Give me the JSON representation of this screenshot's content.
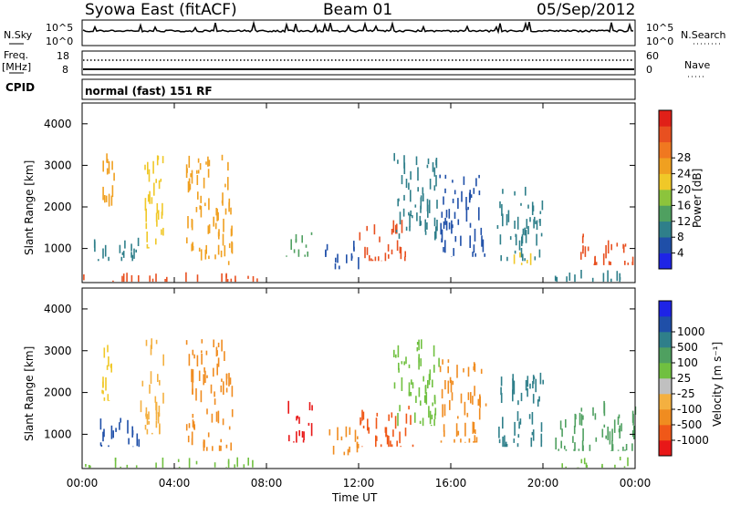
{
  "header": {
    "title": "Syowa East (fitACF)",
    "beam": "Beam 01",
    "date": "05/Sep/2012"
  },
  "status_panels": {
    "nsky_label": "N.Sky",
    "nsearch_label": "N.Search",
    "freq_label_1": "Freq.",
    "freq_label_2": "[MHz]",
    "nave_label": "Nave",
    "cpid_label": "CPID",
    "cpid_text": "normal (fast) 151 RF",
    "noise_left_ticks": [
      "10^5",
      "10^0"
    ],
    "noise_right_ticks": [
      "10^5",
      "10^0"
    ],
    "freq_left_ticks": [
      "18",
      "8"
    ],
    "nave_right_ticks": [
      "60",
      "0"
    ]
  },
  "chart_data": [
    {
      "type": "heatmap",
      "name": "power",
      "xlabel": "",
      "ylabel": "Slant Range [km]",
      "ylim": [
        180,
        4500
      ],
      "xlim": [
        0,
        24
      ],
      "y_ticks": [
        1000,
        2000,
        3000,
        4000
      ],
      "colorbar_label": "Power [dB]",
      "colorbar_ticks": [
        "4",
        "8",
        "12",
        "16",
        "20",
        "24",
        "28"
      ],
      "colorbar_colors": [
        "#1e24e6",
        "#1f4fa8",
        "#2f7f8a",
        "#4fa060",
        "#8cc43c",
        "#f0c828",
        "#f0a020",
        "#f07820",
        "#e85020",
        "#e02018"
      ],
      "regions": [
        {
          "t0": 0.0,
          "t1": 7.6,
          "r0": 200,
          "r1": 450,
          "color": "#e85020"
        },
        {
          "t0": 0.5,
          "t1": 2.5,
          "r0": 700,
          "r1": 1400,
          "color": "#2f7f8a"
        },
        {
          "t0": 0.8,
          "t1": 1.5,
          "r0": 1800,
          "r1": 3300,
          "color": "#f0a020"
        },
        {
          "t0": 2.5,
          "t1": 3.5,
          "r0": 1000,
          "r1": 3300,
          "color": "#f0c828"
        },
        {
          "t0": 4.5,
          "t1": 6.5,
          "r0": 600,
          "r1": 3300,
          "color": "#f0a020"
        },
        {
          "t0": 8.8,
          "t1": 10.0,
          "r0": 800,
          "r1": 1500,
          "color": "#4fa060"
        },
        {
          "t0": 10.5,
          "t1": 12.0,
          "r0": 500,
          "r1": 1200,
          "color": "#1f4fa8"
        },
        {
          "t0": 12.0,
          "t1": 14.0,
          "r0": 700,
          "r1": 1700,
          "color": "#e85020"
        },
        {
          "t0": 13.5,
          "t1": 15.5,
          "r0": 1200,
          "r1": 3300,
          "color": "#2f7f8a"
        },
        {
          "t0": 15.5,
          "t1": 17.5,
          "r0": 800,
          "r1": 2800,
          "color": "#1f4fa8"
        },
        {
          "t0": 18.0,
          "t1": 20.0,
          "r0": 700,
          "r1": 2500,
          "color": "#2f7f8a"
        },
        {
          "t0": 18.5,
          "t1": 19.5,
          "r0": 600,
          "r1": 1000,
          "color": "#f0c828"
        },
        {
          "t0": 21.5,
          "t1": 24.0,
          "r0": 600,
          "r1": 1400,
          "color": "#e85020"
        },
        {
          "t0": 20.5,
          "t1": 24.0,
          "r0": 200,
          "r1": 500,
          "color": "#2f7f8a"
        }
      ]
    },
    {
      "type": "heatmap",
      "name": "velocity",
      "xlabel": "Time UT",
      "ylabel": "Slant Range [km]",
      "ylim": [
        180,
        4500
      ],
      "xlim": [
        0,
        24
      ],
      "y_ticks": [
        1000,
        2000,
        3000,
        4000
      ],
      "x_ticks": [
        "00:00",
        "04:00",
        "08:00",
        "12:00",
        "16:00",
        "20:00",
        "00:00"
      ],
      "colorbar_label": "Velocity [m s⁻¹]",
      "colorbar_ticks": [
        "-1000",
        "-500",
        "-100",
        "-25",
        "25",
        "100",
        "500",
        "1000"
      ],
      "colorbar_colors": [
        "#e81818",
        "#f05818",
        "#f08c20",
        "#f4b040",
        "#c0c0c0",
        "#70c040",
        "#4fa060",
        "#2f7f8a",
        "#1f4fa8",
        "#1e24e6"
      ],
      "regions": [
        {
          "t0": 0.0,
          "t1": 7.6,
          "r0": 200,
          "r1": 450,
          "color": "#70c040"
        },
        {
          "t0": 0.5,
          "t1": 2.5,
          "r0": 700,
          "r1": 1400,
          "color": "#1f4fa8"
        },
        {
          "t0": 0.8,
          "t1": 1.5,
          "r0": 1800,
          "r1": 3300,
          "color": "#f0c828"
        },
        {
          "t0": 2.5,
          "t1": 3.5,
          "r0": 1000,
          "r1": 3300,
          "color": "#f4b040"
        },
        {
          "t0": 4.5,
          "t1": 6.5,
          "r0": 600,
          "r1": 3300,
          "color": "#f08c20"
        },
        {
          "t0": 8.8,
          "t1": 10.0,
          "r0": 800,
          "r1": 1800,
          "color": "#e81818"
        },
        {
          "t0": 10.5,
          "t1": 12.0,
          "r0": 500,
          "r1": 1200,
          "color": "#f08c20"
        },
        {
          "t0": 12.0,
          "t1": 14.5,
          "r0": 700,
          "r1": 1700,
          "color": "#f05818"
        },
        {
          "t0": 13.5,
          "t1": 15.5,
          "r0": 1200,
          "r1": 3300,
          "color": "#70c040"
        },
        {
          "t0": 15.5,
          "t1": 17.5,
          "r0": 800,
          "r1": 2800,
          "color": "#f08c20"
        },
        {
          "t0": 18.0,
          "t1": 20.0,
          "r0": 700,
          "r1": 2500,
          "color": "#2f7f8a"
        },
        {
          "t0": 20.5,
          "t1": 24.0,
          "r0": 600,
          "r1": 1800,
          "color": "#4fa060"
        },
        {
          "t0": 20.5,
          "t1": 24.0,
          "r0": 200,
          "r1": 500,
          "color": "#70c040"
        }
      ]
    }
  ]
}
